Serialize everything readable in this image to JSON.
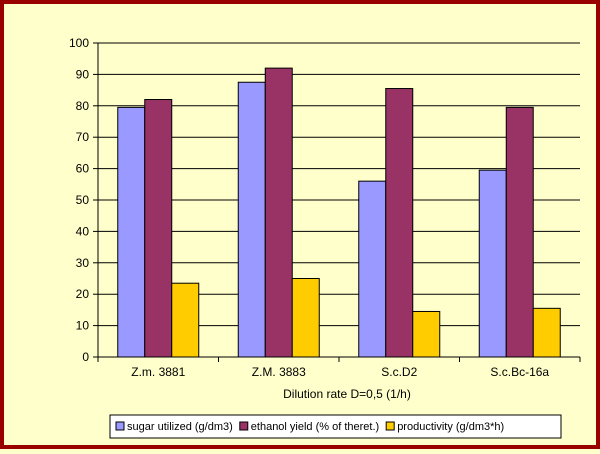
{
  "chart_data": {
    "type": "bar",
    "categories": [
      "Z.m. 3881",
      "Z.M. 3883",
      "S.c.D2",
      "S.c.Bc-16a"
    ],
    "series": [
      {
        "name": "sugar utilized (g/dm3)",
        "values": [
          79.5,
          87.5,
          56,
          59.5
        ],
        "color": "#9999ff"
      },
      {
        "name": "ethanol yield (% of theret.)",
        "values": [
          82,
          92,
          85.5,
          79.5
        ],
        "color": "#993366"
      },
      {
        "name": "productivity (g/dm3*h)",
        "values": [
          23.5,
          25,
          14.5,
          15.5
        ],
        "color": "#ffcc00"
      }
    ],
    "xlabel": "Dilution rate D=0,5 (1/h)",
    "ylabel": "",
    "ylim": [
      0,
      100
    ],
    "yticks": [
      0,
      10,
      20,
      30,
      40,
      50,
      60,
      70,
      80,
      90,
      100
    ],
    "grid": "horizontal",
    "legend_position": "bottom",
    "colors": {
      "frame": "#990000",
      "background": "#ffffcc",
      "grid": "#000000"
    }
  }
}
